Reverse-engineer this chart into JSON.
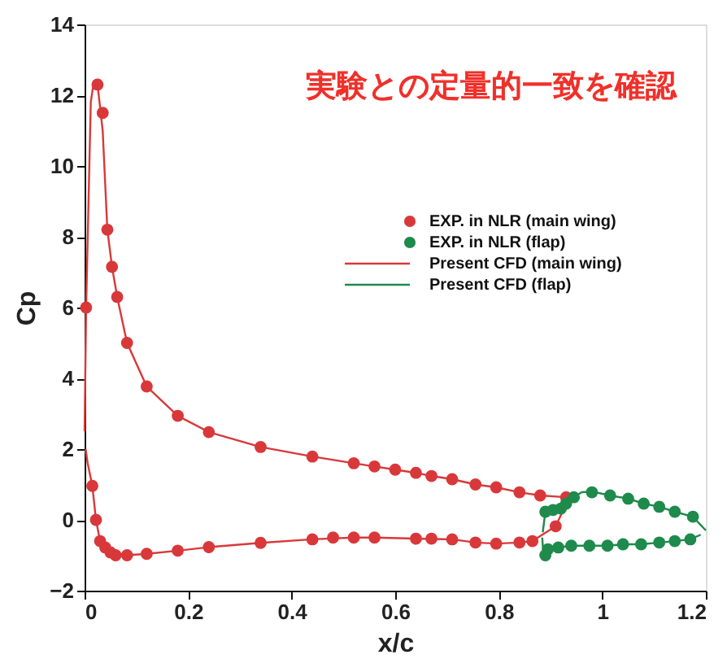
{
  "chart_data": {
    "type": "line",
    "title": "実験との定量的一致を確認",
    "xlabel": "x/c",
    "ylabel": "Cp",
    "xlim": [
      0,
      1.2
    ],
    "xticks": [
      {
        "value": 0,
        "label": "0"
      },
      0.2,
      0.4,
      0.6,
      0.8,
      {
        "value": 1,
        "label": "1"
      },
      1.2
    ],
    "ylim": [
      -2,
      14
    ],
    "yticks": [
      -2,
      0,
      2,
      4,
      6,
      8,
      10,
      12,
      14
    ],
    "grid": false,
    "legend": "right",
    "series": [
      {
        "name": "EXP. in NLR (main wing)",
        "type": "scatter",
        "marker": "circle",
        "color": "#d9383a",
        "x": [
          0.003,
          0.025,
          0.035,
          0.044,
          0.053,
          0.063,
          0.082,
          0.12,
          0.18,
          0.24,
          0.34,
          0.44,
          0.52,
          0.56,
          0.6,
          0.64,
          0.67,
          0.71,
          0.755,
          0.795,
          0.84,
          0.88,
          0.93,
          0.015,
          0.022,
          0.03,
          0.04,
          0.05,
          0.06,
          0.082,
          0.12,
          0.18,
          0.24,
          0.34,
          0.44,
          0.48,
          0.52,
          0.56,
          0.64,
          0.67,
          0.71,
          0.755,
          0.795,
          0.84,
          0.865,
          0.91
        ],
        "values": [
          6.0,
          12.3,
          11.5,
          8.2,
          7.15,
          6.3,
          5.0,
          3.77,
          2.94,
          2.48,
          2.06,
          1.79,
          1.6,
          1.51,
          1.42,
          1.33,
          1.24,
          1.15,
          1.0,
          0.92,
          0.78,
          0.69,
          0.64,
          0.96,
          0.0,
          -0.6,
          -0.78,
          -0.92,
          -1.0,
          -1.0,
          -0.96,
          -0.87,
          -0.77,
          -0.65,
          -0.55,
          -0.5,
          -0.5,
          -0.5,
          -0.53,
          -0.53,
          -0.55,
          -0.64,
          -0.67,
          -0.64,
          -0.6,
          -0.18
        ]
      },
      {
        "name": "EXP. in NLR (flap)",
        "type": "scatter",
        "marker": "circle",
        "color": "#1e8a4c",
        "x": [
          0.89,
          0.905,
          0.92,
          0.93,
          0.945,
          0.98,
          1.015,
          1.05,
          1.08,
          1.11,
          1.14,
          1.175,
          0.89,
          0.895,
          0.915,
          0.94,
          0.975,
          1.01,
          1.04,
          1.075,
          1.11,
          1.14,
          1.17
        ],
        "values": [
          0.23,
          0.28,
          0.32,
          0.46,
          0.64,
          0.78,
          0.69,
          0.6,
          0.46,
          0.37,
          0.23,
          0.09,
          -1.0,
          -0.83,
          -0.78,
          -0.73,
          -0.73,
          -0.73,
          -0.69,
          -0.69,
          -0.64,
          -0.6,
          -0.55
        ]
      },
      {
        "name": "Present CFD (main wing)",
        "color": "#d9383a",
        "x": [
          0.0,
          0.003,
          0.012,
          0.018,
          0.025,
          0.035,
          0.044,
          0.053,
          0.063,
          0.082,
          0.12,
          0.18,
          0.24,
          0.34,
          0.44,
          0.52,
          0.56,
          0.6,
          0.64,
          0.67,
          0.71,
          0.755,
          0.795,
          0.84,
          0.88,
          0.93
        ],
        "values": [
          2.5,
          6.0,
          11.8,
          12.4,
          12.3,
          11.0,
          8.2,
          7.15,
          6.3,
          5.0,
          3.77,
          2.94,
          2.48,
          2.06,
          1.79,
          1.6,
          1.51,
          1.42,
          1.33,
          1.24,
          1.15,
          1.0,
          0.92,
          0.78,
          0.69,
          0.64
        ]
      },
      {
        "color": "#d9383a",
        "x": [
          0.002,
          0.006,
          0.015,
          0.022,
          0.03,
          0.04,
          0.05,
          0.06,
          0.082,
          0.12,
          0.18,
          0.24,
          0.34,
          0.44,
          0.52,
          0.56,
          0.64,
          0.71,
          0.755,
          0.795,
          0.84,
          0.865,
          0.91,
          0.93
        ],
        "values": [
          2.0,
          1.6,
          0.96,
          0.0,
          -0.6,
          -0.78,
          -0.92,
          -1.0,
          -1.0,
          -0.96,
          -0.87,
          -0.77,
          -0.65,
          -0.55,
          -0.5,
          -0.5,
          -0.53,
          -0.55,
          -0.64,
          -0.67,
          -0.64,
          -0.6,
          -0.18,
          0.45
        ]
      },
      {
        "name": "Present CFD (flap)",
        "color": "#1e8a4c",
        "x": [
          0.885,
          0.888,
          0.89,
          0.905,
          0.92,
          0.93,
          0.945,
          0.96,
          0.98,
          1.015,
          1.05,
          1.08,
          1.11,
          1.14,
          1.175,
          1.2
        ],
        "values": [
          -0.35,
          0.0,
          0.2,
          0.28,
          0.32,
          0.46,
          0.64,
          0.78,
          0.8,
          0.69,
          0.6,
          0.46,
          0.37,
          0.23,
          0.09,
          -0.3
        ]
      },
      {
        "color": "#1e8a4c",
        "x": [
          0.884,
          0.886,
          0.895,
          0.915,
          0.94,
          0.975,
          1.01,
          1.04,
          1.075,
          1.11,
          1.14,
          1.17,
          1.19
        ],
        "values": [
          -0.5,
          -0.95,
          -0.83,
          -0.78,
          -0.73,
          -0.73,
          -0.73,
          -0.69,
          -0.69,
          -0.64,
          -0.6,
          -0.55,
          -0.42
        ]
      }
    ]
  }
}
